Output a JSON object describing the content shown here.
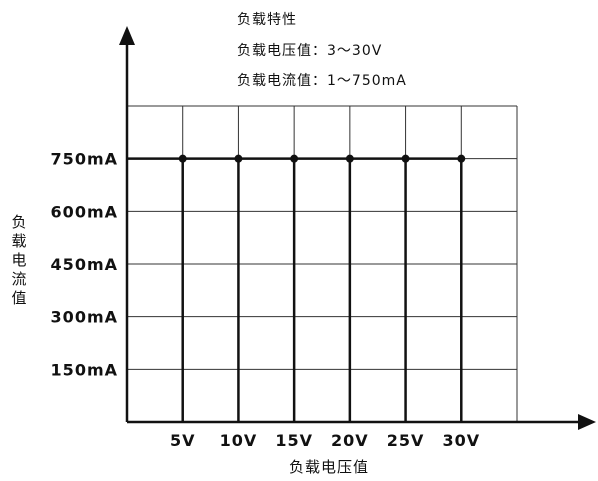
{
  "info": {
    "title": "负载特性",
    "line1": "负载电压值：3～30V",
    "line2": "负载电流值：1～750mA"
  },
  "colors": {
    "line": "#111111",
    "grid": "#333333"
  },
  "chart_data": {
    "type": "line",
    "title": "负载特性",
    "xlabel": "负载电压值",
    "ylabel": "负载电流值",
    "categories": [
      "5V",
      "10V",
      "15V",
      "20V",
      "25V",
      "30V"
    ],
    "x": [
      5,
      10,
      15,
      20,
      25,
      30
    ],
    "y_tick_labels": [
      "150mA",
      "300mA",
      "450mA",
      "600mA",
      "750mA"
    ],
    "y_ticks": [
      150,
      300,
      450,
      600,
      750
    ],
    "series": [
      {
        "values": [
          750,
          750,
          750,
          750,
          750,
          750
        ]
      }
    ],
    "xlim": [
      0,
      35
    ],
    "ylim": [
      0,
      900
    ],
    "grid": true,
    "legend": "none"
  }
}
